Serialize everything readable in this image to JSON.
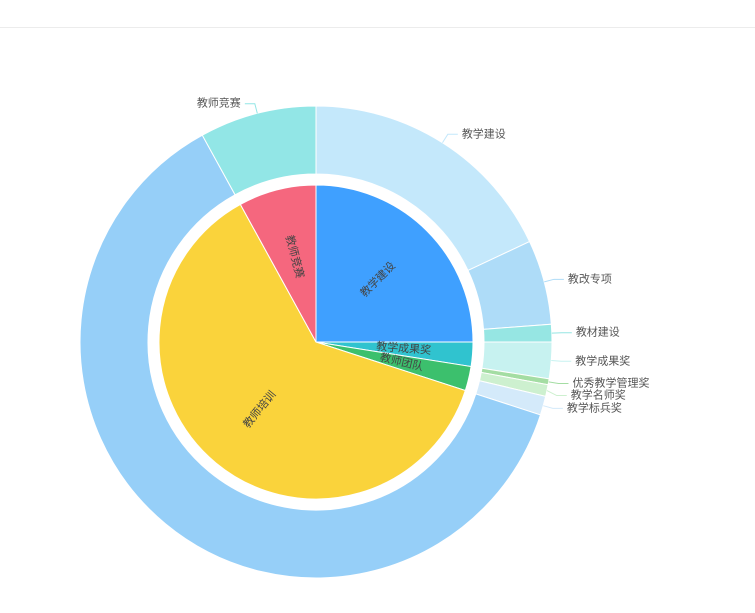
{
  "chart_data": {
    "type": "pie",
    "variant": "nested-donut",
    "inner": [
      {
        "name": "教学建设",
        "value": 25.0,
        "color": "#3fa0ff"
      },
      {
        "name": "教学成果奖",
        "value": 2.5,
        "color": "#30c3cf"
      },
      {
        "name": "教师团队",
        "value": 2.5,
        "color": "#3cc06d"
      },
      {
        "name": "教师培训",
        "value": 62.0,
        "color": "#fad33b"
      },
      {
        "name": "教师竞赛",
        "value": 8.0,
        "color": "#f5677e"
      }
    ],
    "outer": [
      {
        "name": "教学建设",
        "value": 18.0,
        "color": "#c4e8fb"
      },
      {
        "name": "教改专项",
        "value": 5.8,
        "color": "#aedcf8"
      },
      {
        "name": "教材建设",
        "value": 1.2,
        "color": "#96e6e3"
      },
      {
        "name": "教学成果奖",
        "value": 2.5,
        "color": "#c7f2f0"
      },
      {
        "name": "优秀教学管理奖",
        "value": 0.4,
        "color": "#a4dda3"
      },
      {
        "name": "教学名师奖",
        "value": 0.8,
        "color": "#cdf0cf"
      },
      {
        "name": "教学标兵奖",
        "value": 1.3,
        "color": "#d4eafa"
      },
      {
        "name": "教师培训",
        "value": 62.0,
        "color": "#96cff8"
      },
      {
        "name": "教师竞赛",
        "value": 8.0,
        "color": "#92e6e6"
      }
    ]
  }
}
